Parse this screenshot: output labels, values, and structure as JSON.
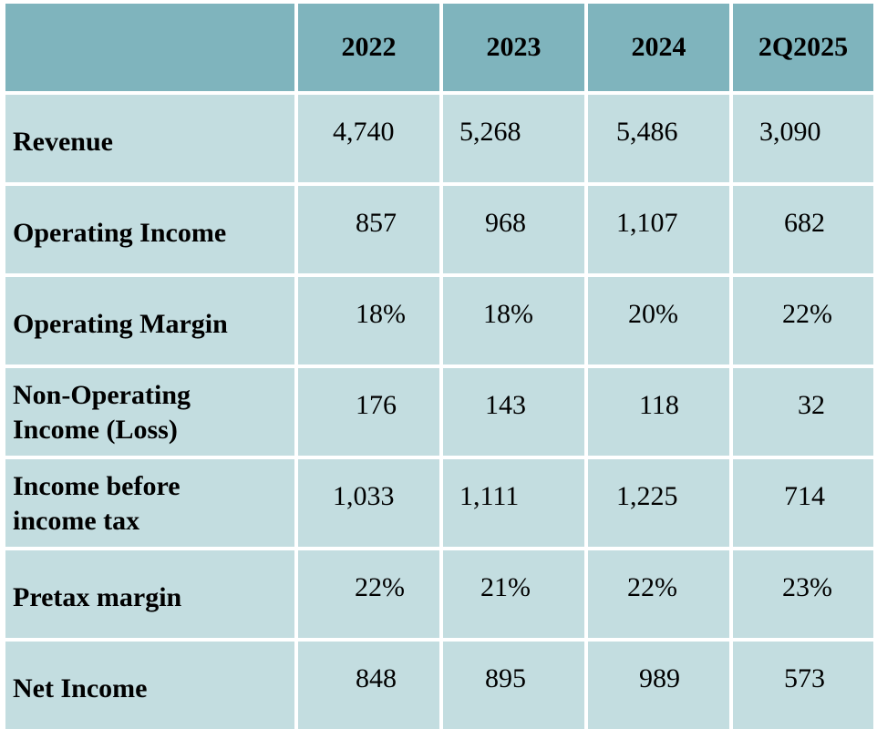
{
  "table": {
    "headers": [
      "",
      "2022",
      "2023",
      "2024",
      "2Q2025"
    ],
    "rows": [
      {
        "label": "Revenue",
        "values": [
          "4,740",
          "5,268",
          "5,486",
          "3,090"
        ]
      },
      {
        "label": "Operating Income",
        "values": [
          "857",
          "968",
          "1,107",
          "682"
        ]
      },
      {
        "label": "Operating Margin",
        "values": [
          "18%",
          "18%",
          "20%",
          "22%"
        ]
      },
      {
        "label": "Non-Operating Income (Loss)",
        "values": [
          "176",
          "143",
          "118",
          "32"
        ]
      },
      {
        "label": "Income before income tax",
        "values": [
          "1,033",
          "1,111",
          "1,225",
          "714"
        ]
      },
      {
        "label": "Pretax margin",
        "values": [
          "22%",
          "21%",
          "22%",
          "23%"
        ]
      },
      {
        "label": "Net Income",
        "values": [
          "848",
          "895",
          "989",
          "573"
        ]
      }
    ]
  },
  "colors": {
    "header_bg": "#7fb4bd",
    "cell_bg": "#c3dde0",
    "grid_lines": "#ffffff"
  }
}
